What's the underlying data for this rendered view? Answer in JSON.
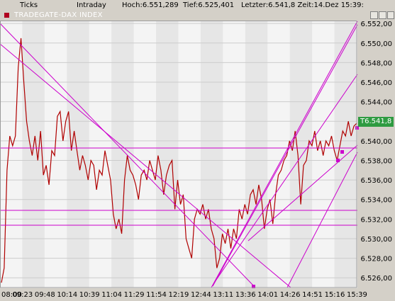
{
  "header": {
    "ticks": "Ticks",
    "intraday": "Intraday",
    "high": "Hoch:6.551,289",
    "low": "Tief:6.525,401",
    "last": "Letzter:6.541,8 Zeit:14.Dez 15:39:"
  },
  "window": {
    "title": "TRADEGATE-DAX INDEX"
  },
  "chart_data": {
    "type": "line",
    "title": "TRADEGATE-DAX INDEX",
    "xlabel": "",
    "ylabel": "",
    "x_ticks": [
      "08:00",
      "09:23",
      "09:48",
      "10:14",
      "10:39",
      "11:04",
      "11:29",
      "11:54",
      "12:19",
      "12:44",
      "13:11",
      "13:36",
      "14:01",
      "14:26",
      "14:51",
      "15:16",
      "15:39"
    ],
    "y_ticks": [
      "6.526,00",
      "6.528,00",
      "6.530,00",
      "6.532,00",
      "6.534,00",
      "6.536,00",
      "6.538,00",
      "6.540,00",
      "6.542,00",
      "6.544,00",
      "6.546,00",
      "6.548,00",
      "6.550,00",
      "6.552,00"
    ],
    "ylim": [
      6525.0,
      6552.3
    ],
    "last_value_label": "T6.541,8",
    "series": [
      {
        "values": [
          6525.5,
          6527.0,
          6537.0,
          6540.5,
          6539.5,
          6540.5,
          6547.5,
          6550.5,
          6546.0,
          6542.0,
          6540.0,
          6538.5,
          6540.5,
          6538.0,
          6541.0,
          6536.5,
          6537.5,
          6535.5,
          6539.0,
          6538.5,
          6542.5,
          6543.0,
          6540.0,
          6542.0,
          6543.0,
          6539.0,
          6541.0,
          6539.0,
          6537.0,
          6538.5,
          6537.5,
          6536.0,
          6538.0,
          6537.5,
          6535.0,
          6537.0,
          6536.5,
          6539.0,
          6537.5,
          6536.0,
          6532.5,
          6531.0,
          6532.0,
          6530.5,
          6536.0,
          6538.5,
          6537.0,
          6536.5,
          6535.5,
          6534.0,
          6536.5,
          6537.0,
          6536.0,
          6538.0,
          6537.0,
          6536.0,
          6538.5,
          6537.0,
          6534.5,
          6536.5,
          6537.5,
          6538.0,
          6533.0,
          6536.0,
          6533.5,
          6534.5,
          6530.0,
          6529.0,
          6528.0,
          6532.0,
          6533.0,
          6532.5,
          6533.5,
          6532.0,
          6533.0,
          6531.0,
          6530.0,
          6527.0,
          6528.0,
          6530.5,
          6529.5,
          6531.0,
          6529.0,
          6531.0,
          6530.0,
          6533.0,
          6532.0,
          6533.5,
          6532.5,
          6534.5,
          6535.0,
          6533.5,
          6535.5,
          6534.0,
          6531.0,
          6533.0,
          6534.0,
          6531.5,
          6534.5,
          6536.5,
          6537.0,
          6538.0,
          6538.5,
          6540.0,
          6539.0,
          6541.0,
          6538.5,
          6533.5,
          6537.5,
          6538.0,
          6540.0,
          6539.5,
          6541.0,
          6539.0,
          6540.0,
          6538.5,
          6540.0,
          6539.5,
          6540.5,
          6539.0,
          6538.0,
          6539.5,
          6541.0,
          6540.5,
          6542.0,
          6540.5,
          6541.5,
          6541.8
        ]
      }
    ],
    "trendlines_color": "#cc00cc",
    "price_color": "#b00000",
    "last_box_color": "#2e9b41"
  }
}
